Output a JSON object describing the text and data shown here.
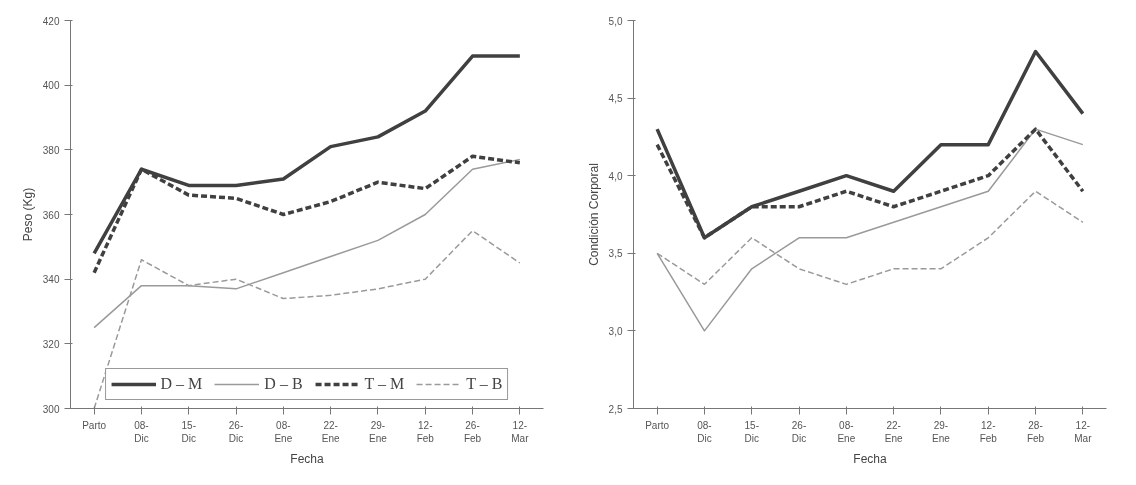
{
  "chart_data": [
    {
      "type": "line",
      "xlabel": "Fecha",
      "ylabel": "Peso (Kg)",
      "categories": [
        "Parto",
        "08-Dic",
        "15-Dic",
        "26-Dic",
        "08-Ene",
        "22-Ene",
        "29-Ene",
        "12-Feb",
        "26-Feb",
        "12-Mar"
      ],
      "ylim": [
        300,
        420
      ],
      "yticks": [
        300,
        320,
        340,
        360,
        380,
        400,
        420
      ],
      "grid": false,
      "legend": "bottom",
      "marker": "none",
      "series": [
        {
          "name": "D – M",
          "color": "#404040",
          "line_style": "solid",
          "values": [
            348,
            374,
            369,
            369,
            371,
            381,
            384,
            392,
            409,
            409
          ]
        },
        {
          "name": "D – B",
          "color": "#9a9a9a",
          "line_style": "solid",
          "values": [
            325,
            338,
            338,
            337,
            342,
            347,
            352,
            360,
            374,
            377
          ]
        },
        {
          "name": "T – M",
          "color": "#404040",
          "line_style": "dashed",
          "values": [
            342,
            374,
            366,
            365,
            360,
            364,
            370,
            368,
            378,
            376
          ]
        },
        {
          "name": "T – B",
          "color": "#9a9a9a",
          "line_style": "dashed",
          "values": [
            300,
            346,
            338,
            340,
            334,
            335,
            337,
            340,
            355,
            345
          ]
        }
      ]
    },
    {
      "type": "line",
      "xlabel": "Fecha",
      "ylabel": "Condición Corporal",
      "categories": [
        "Parto",
        "08-Dic",
        "15-Dic",
        "26-Dic",
        "08-Ene",
        "22-Ene",
        "29-Ene",
        "12-Feb",
        "28-Feb",
        "12-Mar"
      ],
      "ylim": [
        2.5,
        5.0
      ],
      "yticks": [
        {
          "value": 2.5,
          "label": "2,5"
        },
        {
          "value": 3.0,
          "label": "3,0"
        },
        {
          "value": 3.5,
          "label": "3,5"
        },
        {
          "value": 4.0,
          "label": "4,0"
        },
        {
          "value": 4.5,
          "label": "4,5"
        },
        {
          "value": 5.0,
          "label": "5,0"
        }
      ],
      "grid": false,
      "marker": "none",
      "series": [
        {
          "color": "#404040",
          "line_style": "solid",
          "values": [
            4.3,
            3.6,
            3.8,
            3.9,
            4.0,
            3.9,
            4.2,
            4.2,
            4.8,
            4.4
          ]
        },
        {
          "color": "#9a9a9a",
          "line_style": "solid",
          "values": [
            3.5,
            3.0,
            3.4,
            3.6,
            3.6,
            3.7,
            3.8,
            3.9,
            4.3,
            4.2
          ]
        },
        {
          "color": "#404040",
          "line_style": "dashed",
          "values": [
            4.2,
            3.6,
            3.8,
            3.8,
            3.9,
            3.8,
            3.9,
            4.0,
            4.3,
            3.9
          ]
        },
        {
          "color": "#9a9a9a",
          "line_style": "dashed",
          "values": [
            3.5,
            3.3,
            3.6,
            3.4,
            3.3,
            3.4,
            3.4,
            3.6,
            3.9,
            3.7
          ]
        }
      ]
    }
  ]
}
